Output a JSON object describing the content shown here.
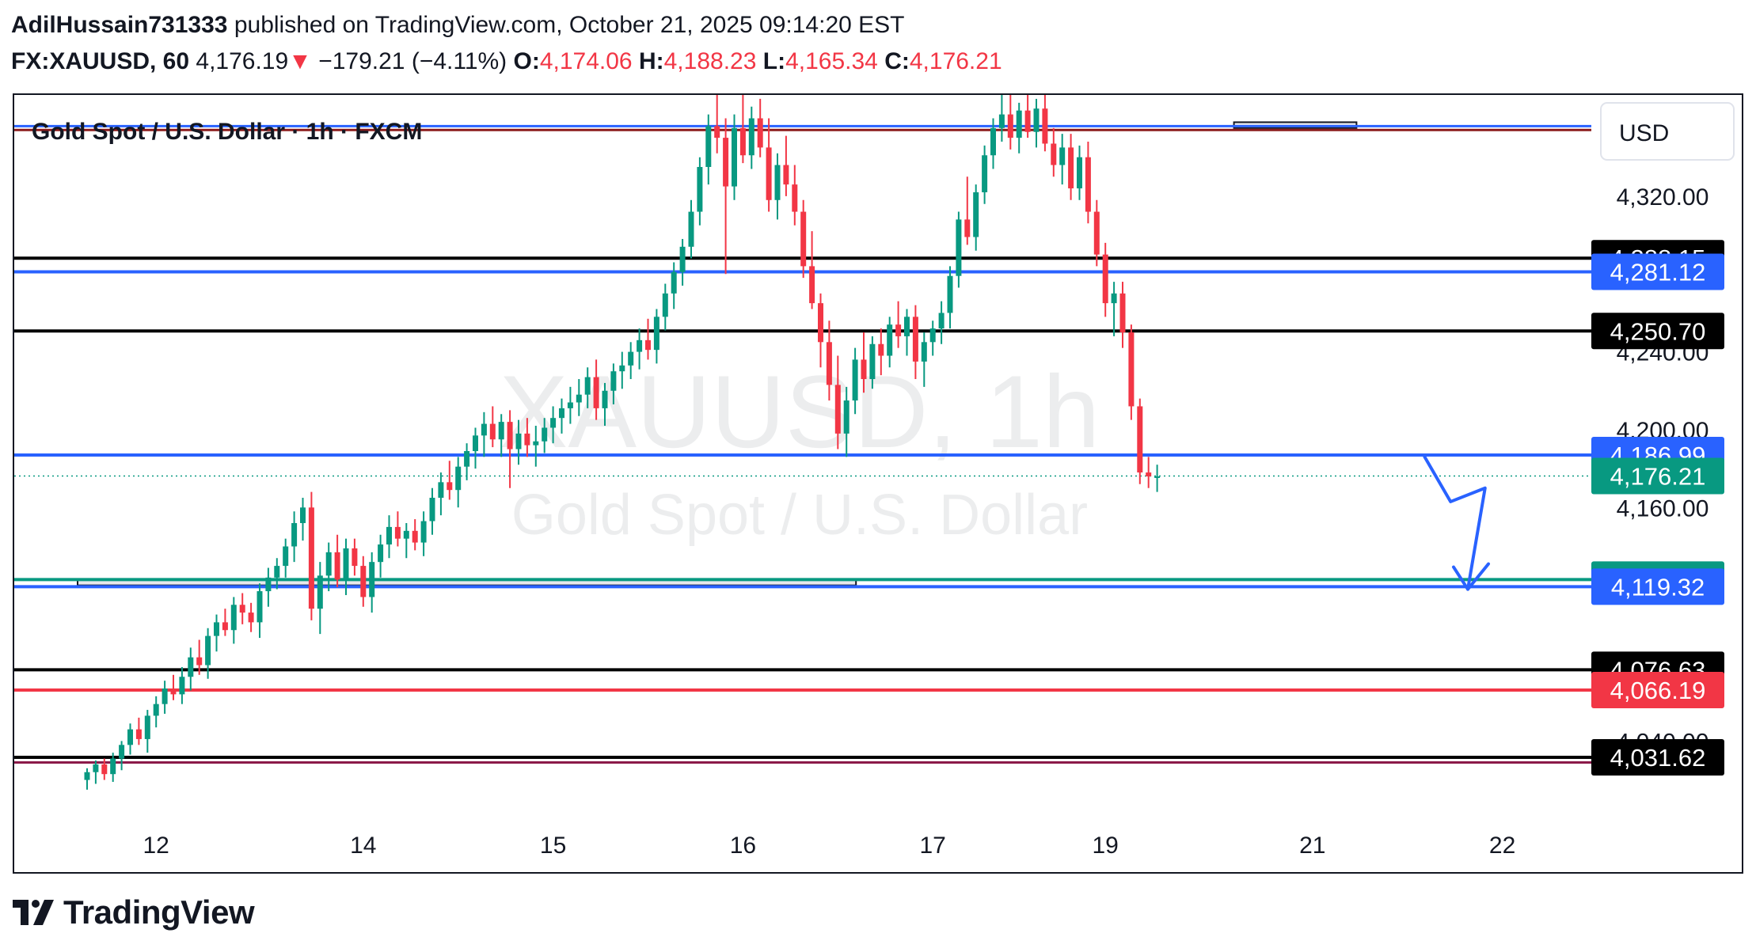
{
  "header": {
    "author": "AdilHussain731333",
    "published": "published on TradingView.com, October 21, 2025 09:14:20 EST",
    "symbol": "FX:XAUUSD, 60",
    "last": "4,176.19",
    "change_arrow": "▼",
    "change": "−179.21 (−4.11%)",
    "o_label": "O:",
    "o_value": "4,174.06",
    "h_label": "H:",
    "h_value": "4,188.23",
    "l_label": "L:",
    "l_value": "4,165.34",
    "c_label": "C:",
    "c_value": "4,176.21"
  },
  "footer": {
    "logo_text": "TradingView"
  },
  "colors": {
    "up": "#089981",
    "down": "#f23645",
    "blue": "#2962ff",
    "black": "#000000",
    "arrow": "#2962ff"
  },
  "chart_data": {
    "type": "candlestick",
    "title": "Gold Spot / U.S. Dollar · 1h · FXCM",
    "watermark_symbol": "XAUUSD, 1h",
    "watermark_name": "Gold Spot / U.S. Dollar",
    "currency_label": "USD",
    "ylim": [
      4006,
      4372
    ],
    "y_ticks": [
      {
        "value": 4320,
        "label": "4,320.00"
      },
      {
        "value": 4240,
        "label": "4,240.00"
      },
      {
        "value": 4200,
        "label": "4,200.00"
      },
      {
        "value": 4160,
        "label": "4,160.00"
      },
      {
        "value": 4040,
        "label": "4,040.00"
      }
    ],
    "x_ticks": [
      {
        "i": 8,
        "label": "12"
      },
      {
        "i": 32,
        "label": "14"
      },
      {
        "i": 54,
        "label": "15"
      },
      {
        "i": 76,
        "label": "16"
      },
      {
        "i": 98,
        "label": "17"
      },
      {
        "i": 118,
        "label": "19"
      },
      {
        "i": 142,
        "label": "21"
      },
      {
        "i": 164,
        "label": "22"
      }
    ],
    "horizontal_levels": [
      {
        "value": 4288.15,
        "label": "4,288.15",
        "color": "#000000"
      },
      {
        "value": 4281.12,
        "label": "4,281.12",
        "color": "#2962ff"
      },
      {
        "value": 4250.7,
        "label": "4,250.70",
        "color": "#000000"
      },
      {
        "value": 4186.99,
        "label": "4,186.99",
        "color": "#2962ff"
      },
      {
        "value": 4122.98,
        "label": "4,122.98",
        "color": "#089981"
      },
      {
        "value": 4119.32,
        "label": "4,119.32",
        "color": "#2962ff"
      },
      {
        "value": 4076.63,
        "label": "4,076.63",
        "color": "#000000"
      },
      {
        "value": 4066.19,
        "label": "4,066.19",
        "color": "#f23645"
      },
      {
        "value": 4031.62,
        "label": "4,031.62",
        "color": "#000000"
      }
    ],
    "unlabeled_levels": [
      {
        "value": 4356,
        "color": "#2962ff"
      },
      {
        "value": 4354,
        "color": "#8b1a1a"
      },
      {
        "value": 4029,
        "color": "#8b1a4a"
      }
    ],
    "current_price": {
      "value": 4176.21,
      "label": "4,176.21",
      "color": "#089981"
    },
    "zones": [
      {
        "i_start": 0,
        "i_end": 88,
        "y_top": 4123,
        "y_bottom": 4120
      },
      {
        "i_start": 134,
        "i_end": 146,
        "y_top": 4358,
        "y_bottom": 4355
      }
    ],
    "projection_arrow": [
      [
        155,
        4186
      ],
      [
        158,
        4163
      ],
      [
        162,
        4170
      ],
      [
        160,
        4118
      ]
    ],
    "candles": [
      [
        4020,
        4026,
        4015,
        4024
      ],
      [
        4024,
        4030,
        4018,
        4028
      ],
      [
        4028,
        4031,
        4020,
        4023
      ],
      [
        4023,
        4034,
        4019,
        4031
      ],
      [
        4031,
        4040,
        4025,
        4038
      ],
      [
        4038,
        4049,
        4033,
        4046
      ],
      [
        4046,
        4052,
        4038,
        4041
      ],
      [
        4041,
        4056,
        4034,
        4053
      ],
      [
        4053,
        4063,
        4047,
        4059
      ],
      [
        4059,
        4071,
        4054,
        4067
      ],
      [
        4067,
        4074,
        4061,
        4064
      ],
      [
        4064,
        4078,
        4059,
        4073
      ],
      [
        4073,
        4088,
        4066,
        4083
      ],
      [
        4083,
        4092,
        4074,
        4079
      ],
      [
        4079,
        4098,
        4072,
        4094
      ],
      [
        4094,
        4105,
        4086,
        4101
      ],
      [
        4101,
        4108,
        4094,
        4097
      ],
      [
        4097,
        4114,
        4090,
        4110
      ],
      [
        4110,
        4116,
        4100,
        4106
      ],
      [
        4106,
        4111,
        4096,
        4101
      ],
      [
        4101,
        4121,
        4093,
        4117
      ],
      [
        4117,
        4129,
        4109,
        4124
      ],
      [
        4124,
        4134,
        4118,
        4130
      ],
      [
        4130,
        4144,
        4124,
        4140
      ],
      [
        4140,
        4158,
        4132,
        4152
      ],
      [
        4152,
        4165,
        4143,
        4160
      ],
      [
        4160,
        4168,
        4102,
        4108
      ],
      [
        4108,
        4132,
        4095,
        4125
      ],
      [
        4125,
        4142,
        4117,
        4137
      ],
      [
        4137,
        4146,
        4119,
        4123
      ],
      [
        4123,
        4144,
        4115,
        4139
      ],
      [
        4139,
        4144,
        4125,
        4130
      ],
      [
        4130,
        4135,
        4109,
        4114
      ],
      [
        4114,
        4137,
        4106,
        4132
      ],
      [
        4132,
        4146,
        4124,
        4141
      ],
      [
        4141,
        4156,
        4134,
        4150
      ],
      [
        4150,
        4158,
        4140,
        4144
      ],
      [
        4144,
        4152,
        4134,
        4148
      ],
      [
        4148,
        4154,
        4138,
        4142
      ],
      [
        4142,
        4158,
        4135,
        4153
      ],
      [
        4153,
        4170,
        4146,
        4165
      ],
      [
        4165,
        4178,
        4156,
        4173
      ],
      [
        4173,
        4184,
        4164,
        4169
      ],
      [
        4169,
        4186,
        4160,
        4181
      ],
      [
        4181,
        4193,
        4174,
        4189
      ],
      [
        4189,
        4201,
        4180,
        4197
      ],
      [
        4197,
        4209,
        4186,
        4203
      ],
      [
        4203,
        4212,
        4191,
        4195
      ],
      [
        4195,
        4208,
        4186,
        4204
      ],
      [
        4204,
        4210,
        4170,
        4190
      ],
      [
        4190,
        4205,
        4182,
        4198
      ],
      [
        4198,
        4206,
        4186,
        4192
      ],
      [
        4192,
        4202,
        4181,
        4194
      ],
      [
        4194,
        4206,
        4188,
        4201
      ],
      [
        4201,
        4212,
        4193,
        4206
      ],
      [
        4206,
        4216,
        4198,
        4211
      ],
      [
        4211,
        4222,
        4203,
        4214
      ],
      [
        4214,
        4226,
        4207,
        4218
      ],
      [
        4218,
        4232,
        4211,
        4227
      ],
      [
        4227,
        4236,
        4205,
        4211
      ],
      [
        4211,
        4224,
        4202,
        4220
      ],
      [
        4220,
        4234,
        4213,
        4230
      ],
      [
        4230,
        4240,
        4221,
        4233
      ],
      [
        4233,
        4245,
        4226,
        4240
      ],
      [
        4240,
        4252,
        4231,
        4246
      ],
      [
        4246,
        4257,
        4236,
        4241
      ],
      [
        4241,
        4262,
        4234,
        4258
      ],
      [
        4258,
        4275,
        4251,
        4270
      ],
      [
        4270,
        4286,
        4262,
        4281
      ],
      [
        4281,
        4298,
        4274,
        4294
      ],
      [
        4294,
        4318,
        4288,
        4312
      ],
      [
        4312,
        4340,
        4305,
        4335
      ],
      [
        4335,
        4362,
        4326,
        4356
      ],
      [
        4356,
        4372,
        4342,
        4350
      ],
      [
        4350,
        4360,
        4280,
        4325
      ],
      [
        4325,
        4362,
        4318,
        4355
      ],
      [
        4355,
        4372,
        4337,
        4341
      ],
      [
        4341,
        4366,
        4334,
        4360
      ],
      [
        4360,
        4370,
        4340,
        4345
      ],
      [
        4345,
        4360,
        4312,
        4318
      ],
      [
        4318,
        4342,
        4308,
        4336
      ],
      [
        4336,
        4351,
        4320,
        4326
      ],
      [
        4326,
        4336,
        4305,
        4312
      ],
      [
        4312,
        4318,
        4278,
        4284
      ],
      [
        4284,
        4302,
        4262,
        4265
      ],
      [
        4265,
        4270,
        4232,
        4245
      ],
      [
        4245,
        4256,
        4215,
        4223
      ],
      [
        4223,
        4238,
        4190,
        4198
      ],
      [
        4198,
        4222,
        4186,
        4215
      ],
      [
        4215,
        4242,
        4208,
        4236
      ],
      [
        4236,
        4250,
        4219,
        4226
      ],
      [
        4226,
        4248,
        4221,
        4244
      ],
      [
        4244,
        4252,
        4228,
        4238
      ],
      [
        4238,
        4258,
        4232,
        4254
      ],
      [
        4254,
        4266,
        4242,
        4248
      ],
      [
        4248,
        4262,
        4238,
        4258
      ],
      [
        4258,
        4264,
        4226,
        4235
      ],
      [
        4235,
        4250,
        4222,
        4245
      ],
      [
        4245,
        4256,
        4238,
        4252
      ],
      [
        4252,
        4266,
        4244,
        4260
      ],
      [
        4260,
        4284,
        4252,
        4279
      ],
      [
        4279,
        4312,
        4273,
        4308
      ],
      [
        4308,
        4330,
        4295,
        4299
      ],
      [
        4299,
        4326,
        4292,
        4322
      ],
      [
        4322,
        4346,
        4316,
        4341
      ],
      [
        4341,
        4360,
        4334,
        4355
      ],
      [
        4355,
        4372,
        4348,
        4362
      ],
      [
        4362,
        4372,
        4344,
        4350
      ],
      [
        4350,
        4368,
        4342,
        4364
      ],
      [
        4364,
        4372,
        4350,
        4353
      ],
      [
        4353,
        4370,
        4345,
        4365
      ],
      [
        4365,
        4372,
        4343,
        4347
      ],
      [
        4347,
        4355,
        4330,
        4336
      ],
      [
        4336,
        4352,
        4326,
        4345
      ],
      [
        4345,
        4352,
        4318,
        4324
      ],
      [
        4324,
        4346,
        4318,
        4340
      ],
      [
        4340,
        4348,
        4306,
        4312
      ],
      [
        4312,
        4318,
        4284,
        4290
      ],
      [
        4290,
        4296,
        4258,
        4265
      ],
      [
        4265,
        4276,
        4248,
        4270
      ],
      [
        4270,
        4276,
        4242,
        4250
      ],
      [
        4250,
        4254,
        4205,
        4212
      ],
      [
        4212,
        4216,
        4172,
        4178
      ],
      [
        4178,
        4186,
        4170,
        4176
      ],
      [
        4176,
        4182,
        4168,
        4176
      ]
    ]
  }
}
